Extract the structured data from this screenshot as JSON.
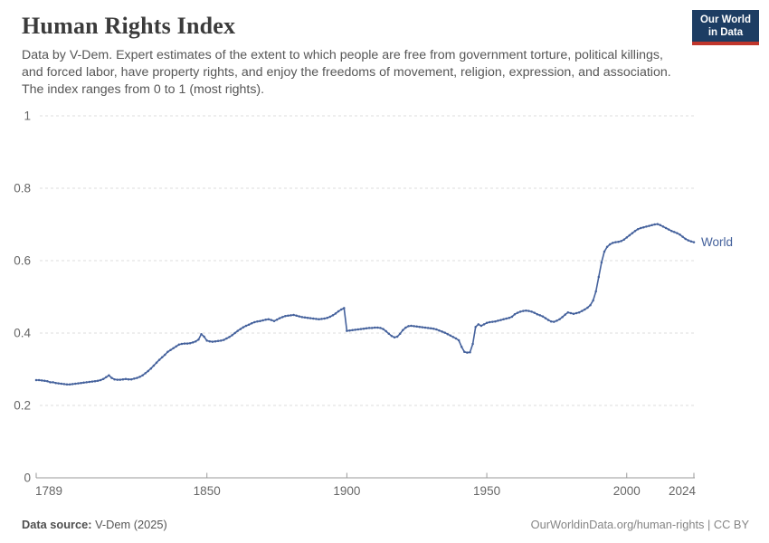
{
  "header": {
    "title": "Human Rights Index",
    "subtitle": "Data by V-Dem. Expert estimates of the extent to which people are free from government torture, political killings, and forced labor, have property rights, and enjoy the freedoms of movement, religion, expression, and association. The index ranges from 0 to 1 (most rights).",
    "logo": {
      "line1": "Our World",
      "line2": "in Data",
      "bg_color": "#1d3d63",
      "accent_color": "#c0362c"
    }
  },
  "chart_data": {
    "type": "line",
    "title": "Human Rights Index",
    "xlabel": "",
    "ylabel": "",
    "xlim": [
      1789,
      2024
    ],
    "ylim": [
      0,
      1
    ],
    "x_ticks": [
      1789,
      1850,
      1900,
      1950,
      2000,
      2024
    ],
    "y_ticks": [
      0,
      0.2,
      0.4,
      0.6,
      0.8,
      1
    ],
    "grid": "horizontal-dashed",
    "legend_position": "end-of-line-label",
    "colors": {
      "grid": "#dcdcdc",
      "axis": "#9a9a9a",
      "tick_text": "#666666"
    },
    "series": [
      {
        "name": "World",
        "color": "#44619c",
        "x_start": 1789,
        "x_step": 1,
        "values": [
          0.27,
          0.27,
          0.269,
          0.268,
          0.267,
          0.264,
          0.264,
          0.262,
          0.261,
          0.26,
          0.259,
          0.258,
          0.258,
          0.259,
          0.26,
          0.261,
          0.262,
          0.263,
          0.264,
          0.265,
          0.266,
          0.267,
          0.268,
          0.27,
          0.273,
          0.278,
          0.283,
          0.276,
          0.272,
          0.271,
          0.271,
          0.272,
          0.273,
          0.272,
          0.272,
          0.274,
          0.276,
          0.279,
          0.283,
          0.289,
          0.295,
          0.302,
          0.31,
          0.318,
          0.326,
          0.333,
          0.34,
          0.348,
          0.353,
          0.358,
          0.363,
          0.368,
          0.37,
          0.371,
          0.371,
          0.372,
          0.374,
          0.377,
          0.382,
          0.397,
          0.39,
          0.379,
          0.377,
          0.376,
          0.377,
          0.378,
          0.379,
          0.381,
          0.385,
          0.389,
          0.394,
          0.4,
          0.406,
          0.411,
          0.416,
          0.42,
          0.423,
          0.427,
          0.43,
          0.432,
          0.433,
          0.435,
          0.437,
          0.438,
          0.436,
          0.433,
          0.437,
          0.441,
          0.444,
          0.447,
          0.448,
          0.449,
          0.45,
          0.448,
          0.446,
          0.444,
          0.443,
          0.442,
          0.441,
          0.44,
          0.439,
          0.438,
          0.439,
          0.44,
          0.442,
          0.445,
          0.449,
          0.454,
          0.46,
          0.465,
          0.469,
          0.406,
          0.407,
          0.408,
          0.409,
          0.41,
          0.411,
          0.412,
          0.413,
          0.414,
          0.414,
          0.415,
          0.415,
          0.414,
          0.411,
          0.405,
          0.398,
          0.392,
          0.388,
          0.39,
          0.398,
          0.408,
          0.415,
          0.419,
          0.42,
          0.419,
          0.418,
          0.417,
          0.416,
          0.415,
          0.414,
          0.413,
          0.412,
          0.41,
          0.407,
          0.404,
          0.401,
          0.397,
          0.393,
          0.389,
          0.385,
          0.38,
          0.362,
          0.348,
          0.346,
          0.347,
          0.37,
          0.417,
          0.424,
          0.42,
          0.424,
          0.428,
          0.43,
          0.431,
          0.432,
          0.434,
          0.436,
          0.438,
          0.44,
          0.442,
          0.445,
          0.452,
          0.456,
          0.459,
          0.461,
          0.462,
          0.461,
          0.459,
          0.456,
          0.452,
          0.449,
          0.446,
          0.441,
          0.436,
          0.432,
          0.431,
          0.434,
          0.438,
          0.444,
          0.451,
          0.457,
          0.455,
          0.453,
          0.455,
          0.457,
          0.461,
          0.465,
          0.47,
          0.477,
          0.49,
          0.515,
          0.555,
          0.595,
          0.625,
          0.638,
          0.645,
          0.649,
          0.651,
          0.652,
          0.654,
          0.658,
          0.664,
          0.67,
          0.676,
          0.682,
          0.687,
          0.69,
          0.692,
          0.694,
          0.696,
          0.698,
          0.7,
          0.701,
          0.698,
          0.694,
          0.69,
          0.686,
          0.682,
          0.679,
          0.676,
          0.672,
          0.666,
          0.66,
          0.656,
          0.653,
          0.651
        ]
      }
    ]
  },
  "footer": {
    "source_label": "Data source:",
    "source_value": " V-Dem (2025)",
    "link": "OurWorldinData.org/human-rights | CC BY"
  }
}
